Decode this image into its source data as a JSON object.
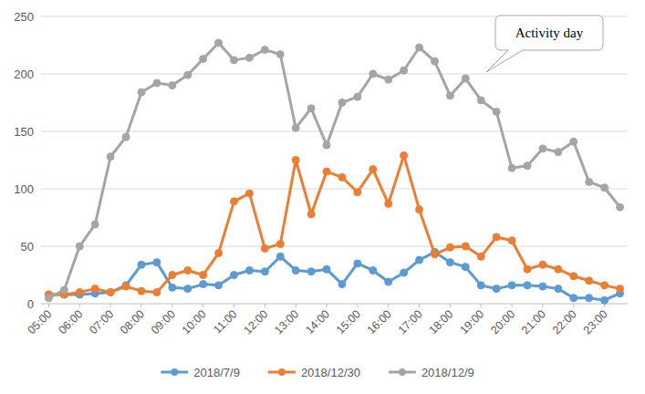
{
  "chart_data": {
    "type": "line",
    "categories": [
      "05:00",
      null,
      "06:00",
      null,
      "07:00",
      null,
      "08:00",
      null,
      "09:00",
      null,
      "10:00",
      null,
      "11:00",
      null,
      "12:00",
      null,
      "13:00",
      null,
      "14:00",
      null,
      "15:00",
      null,
      "16:00",
      null,
      "17:00",
      null,
      "18:00",
      null,
      "19:00",
      null,
      "20:00",
      null,
      "21:00",
      null,
      "22:00",
      null,
      "23:00",
      null
    ],
    "series": [
      {
        "name": "2018/7/9",
        "color": "#5b9bd5",
        "marker": "circle",
        "values": [
          8,
          8,
          8,
          9,
          10,
          16,
          34,
          36,
          14,
          13,
          17,
          16,
          25,
          29,
          28,
          41,
          29,
          28,
          30,
          17,
          35,
          29,
          19,
          27,
          38,
          45,
          36,
          32,
          16,
          13,
          16,
          16,
          15,
          13,
          5,
          5,
          3,
          9
        ]
      },
      {
        "name": "2018/12/30",
        "color": "#ed7d31",
        "marker": "circle",
        "values": [
          8,
          8,
          10,
          13,
          10,
          15,
          11,
          10,
          25,
          29,
          25,
          44,
          89,
          96,
          48,
          52,
          125,
          78,
          115,
          110,
          97,
          117,
          87,
          129,
          82,
          43,
          49,
          50,
          41,
          58,
          55,
          30,
          34,
          30,
          24,
          20,
          16,
          13
        ]
      },
      {
        "name": "2018/12/9",
        "color": "#a5a5a5",
        "marker": "circle",
        "values": [
          5,
          12,
          50,
          69,
          128,
          145,
          184,
          192,
          190,
          199,
          213,
          227,
          212,
          214,
          221,
          217,
          153,
          170,
          138,
          175,
          180,
          200,
          195,
          203,
          223,
          211,
          181,
          196,
          177,
          167,
          118,
          120,
          135,
          132,
          141,
          106,
          101,
          84
        ]
      }
    ],
    "ylim": [
      0,
      250
    ],
    "yticks": [
      0,
      50,
      100,
      150,
      200,
      250
    ],
    "grid": true,
    "legend": "bottom",
    "annotation": "Activity day"
  }
}
